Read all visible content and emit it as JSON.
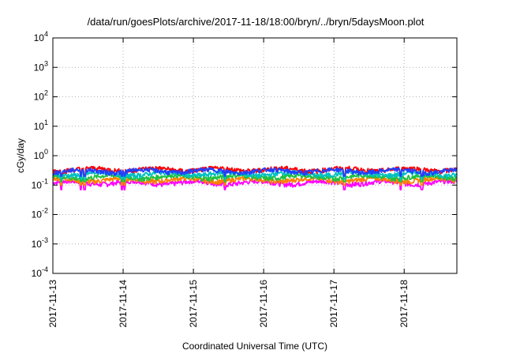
{
  "chart_data": {
    "type": "line",
    "title": "/data/run/goesPlots/archive/2017-11-18/18:00/bryn/../bryn/5daysMoon.plot",
    "xlabel": "Coordinated Universal Time (UTC)",
    "ylabel": "cGy/day",
    "y_scale": "log",
    "ylim": [
      0.0001,
      10000
    ],
    "xlim": [
      "2017-11-13",
      "2017-11-18 18:00"
    ],
    "grid": true,
    "legend": "none",
    "x_tick_labels": [
      "2017-11-13",
      "2017-11-14",
      "2017-11-15",
      "2017-11-16",
      "2017-11-17",
      "2017-11-18"
    ],
    "y_tick_labels": [
      {
        "base": "10",
        "exp": "-4"
      },
      {
        "base": "10",
        "exp": "-3"
      },
      {
        "base": "10",
        "exp": "-2"
      },
      {
        "base": "10",
        "exp": "-1"
      },
      {
        "base": "10",
        "exp": "0"
      },
      {
        "base": "10",
        "exp": "1"
      },
      {
        "base": "10",
        "exp": "2"
      },
      {
        "base": "10",
        "exp": "3"
      },
      {
        "base": "10",
        "exp": "4"
      }
    ],
    "series": [
      {
        "color": "#ff00ff",
        "base_value": 0.12,
        "dip_value": 0.07
      },
      {
        "color": "#ff8000",
        "base_value": 0.15,
        "dip_value": 0.1
      },
      {
        "color": "#20c040",
        "base_value": 0.19,
        "dip_value": 0.13
      },
      {
        "color": "#00c0c0",
        "base_value": 0.24,
        "dip_value": 0.16
      },
      {
        "color": "#ff0000",
        "base_value": 0.34,
        "dip_value": 0.22
      },
      {
        "color": "#2040ff",
        "base_value": 0.3,
        "dip_value": 0.2
      }
    ],
    "dip_days": [
      0.12,
      0.4,
      0.45,
      0.98,
      1.02,
      2.45,
      4.15,
      4.95,
      5.25
    ]
  }
}
